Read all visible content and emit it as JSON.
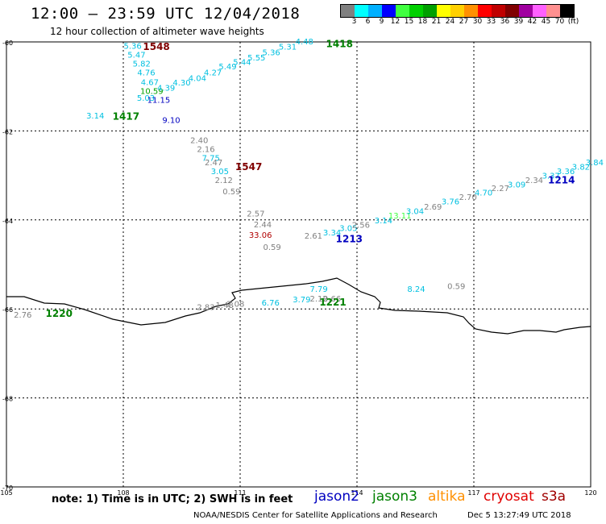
{
  "header": {
    "title": "12:00 – 23:59 UTC 12/04/2018",
    "subtitle": "12 hour collection of altimeter wave heights"
  },
  "legend": {
    "colors": [
      "#808080",
      "#00ffff",
      "#00b0ff",
      "#0000ff",
      "#40ff40",
      "#00d000",
      "#00a000",
      "#ffff00",
      "#ffd000",
      "#ff9000",
      "#ff0000",
      "#c00000",
      "#800000",
      "#a000a0",
      "#ff60ff",
      "#ff9090",
      "#000000"
    ],
    "labels": [
      "3",
      "6",
      "9",
      "12",
      "15",
      "18",
      "21",
      "24",
      "27",
      "30",
      "33",
      "36",
      "39",
      "42",
      "45",
      "70",
      "(ft)"
    ]
  },
  "map": {
    "lat_ticks": [
      "-60",
      "-62",
      "-64",
      "-66",
      "-68",
      "-70"
    ],
    "lon_ticks": [
      "105",
      "108",
      "111",
      "114",
      "117",
      "120"
    ],
    "ticks": [
      {
        "text": "5.36",
        "lon": 108.24,
        "lat": -60.15,
        "color": "#00c0e0"
      },
      {
        "text": "5.47",
        "lon": 108.34,
        "lat": -60.35,
        "color": "#00c0e0"
      },
      {
        "text": "5.82",
        "lon": 108.47,
        "lat": -60.55,
        "color": "#00c0e0"
      },
      {
        "text": "4.76",
        "lon": 108.59,
        "lat": -60.75,
        "color": "#00c0e0"
      },
      {
        "text": "4.67",
        "lon": 108.68,
        "lat": -60.97,
        "color": "#00c0e0"
      },
      {
        "text": "10.59",
        "lon": 108.73,
        "lat": -61.17,
        "color": "#00a000"
      },
      {
        "text": "5.03",
        "lon": 108.58,
        "lat": -61.32,
        "color": "#00c0e0"
      },
      {
        "text": "11.15",
        "lon": 108.91,
        "lat": -61.37,
        "color": "#0000c0"
      },
      {
        "text": "3.14",
        "lon": 107.28,
        "lat": -61.72,
        "color": "#00c0e0"
      },
      {
        "text": "9.10",
        "lon": 109.23,
        "lat": -61.82,
        "color": "#0000c0"
      },
      {
        "text": "4.39",
        "lon": 109.1,
        "lat": -61.1,
        "color": "#00c0e0"
      },
      {
        "text": "4.30",
        "lon": 109.5,
        "lat": -60.98,
        "color": "#00c0e0"
      },
      {
        "text": "4.04",
        "lon": 109.9,
        "lat": -60.88,
        "color": "#00c0e0"
      },
      {
        "text": "4.27",
        "lon": 110.3,
        "lat": -60.75,
        "color": "#00c0e0"
      },
      {
        "text": "5.49",
        "lon": 110.68,
        "lat": -60.62,
        "color": "#00c0e0"
      },
      {
        "text": "5.44",
        "lon": 111.05,
        "lat": -60.52,
        "color": "#00c0e0"
      },
      {
        "text": "5.55",
        "lon": 111.42,
        "lat": -60.42,
        "color": "#00c0e0"
      },
      {
        "text": "5.36",
        "lon": 111.8,
        "lat": -60.3,
        "color": "#00c0e0"
      },
      {
        "text": "5.31",
        "lon": 112.22,
        "lat": -60.17,
        "color": "#00c0e0"
      },
      {
        "text": "4.48",
        "lon": 112.65,
        "lat": -60.05,
        "color": "#00c0e0"
      },
      {
        "text": "2.40",
        "lon": 109.95,
        "lat": -62.27,
        "color": "#808080"
      },
      {
        "text": "2.16",
        "lon": 110.12,
        "lat": -62.47,
        "color": "#808080"
      },
      {
        "text": "7.75",
        "lon": 110.25,
        "lat": -62.67,
        "color": "#00c0e0"
      },
      {
        "text": "2.47",
        "lon": 110.32,
        "lat": -62.77,
        "color": "#808080"
      },
      {
        "text": "3.05",
        "lon": 110.48,
        "lat": -62.97,
        "color": "#00c0e0"
      },
      {
        "text": "2.12",
        "lon": 110.58,
        "lat": -63.17,
        "color": "#808080"
      },
      {
        "text": "0.59",
        "lon": 110.78,
        "lat": -63.42,
        "color": "#808080"
      },
      {
        "text": "2.57",
        "lon": 111.4,
        "lat": -63.92,
        "color": "#808080"
      },
      {
        "text": "2.44",
        "lon": 111.58,
        "lat": -64.17,
        "color": "#808080"
      },
      {
        "text": "33.06",
        "lon": 111.52,
        "lat": -64.4,
        "color": "#b00000"
      },
      {
        "text": "0.59",
        "lon": 111.82,
        "lat": -64.67,
        "color": "#808080"
      },
      {
        "text": "2.61",
        "lon": 112.88,
        "lat": -64.42,
        "color": "#808080"
      },
      {
        "text": "3.34",
        "lon": 113.36,
        "lat": -64.35,
        "color": "#00c0e0"
      },
      {
        "text": "3.05",
        "lon": 113.78,
        "lat": -64.25,
        "color": "#00c0e0"
      },
      {
        "text": "2.56",
        "lon": 114.1,
        "lat": -64.18,
        "color": "#808080"
      },
      {
        "text": "3.14",
        "lon": 114.68,
        "lat": -64.08,
        "color": "#00c0e0"
      },
      {
        "text": "13.11",
        "lon": 115.1,
        "lat": -63.97,
        "color": "#40ff40"
      },
      {
        "text": "3.04",
        "lon": 115.49,
        "lat": -63.87,
        "color": "#00c0e0"
      },
      {
        "text": "2.69",
        "lon": 115.95,
        "lat": -63.77,
        "color": "#808080"
      },
      {
        "text": "3.76",
        "lon": 116.4,
        "lat": -63.65,
        "color": "#00c0e0"
      },
      {
        "text": "2.70",
        "lon": 116.85,
        "lat": -63.55,
        "color": "#808080"
      },
      {
        "text": "4.70",
        "lon": 117.25,
        "lat": -63.45,
        "color": "#00c0e0"
      },
      {
        "text": "2.27",
        "lon": 117.68,
        "lat": -63.35,
        "color": "#808080"
      },
      {
        "text": "3.09",
        "lon": 118.1,
        "lat": -63.27,
        "color": "#00c0e0"
      },
      {
        "text": "2.34",
        "lon": 118.55,
        "lat": -63.17,
        "color": "#808080"
      },
      {
        "text": "3.37",
        "lon": 118.98,
        "lat": -63.07,
        "color": "#00c0e0"
      },
      {
        "text": "3.36",
        "lon": 119.36,
        "lat": -62.97,
        "color": "#00c0e0"
      },
      {
        "text": "3.82",
        "lon": 119.75,
        "lat": -62.87,
        "color": "#00c0e0"
      },
      {
        "text": "3.84",
        "lon": 120.1,
        "lat": -62.77,
        "color": "#00c0e0"
      },
      {
        "text": "8.24",
        "lon": 115.52,
        "lat": -65.62,
        "color": "#00c0e0"
      },
      {
        "text": "0.59",
        "lon": 116.55,
        "lat": -65.55,
        "color": "#808080"
      },
      {
        "text": "2.76",
        "lon": 105.42,
        "lat": -66.2,
        "color": "#808080"
      },
      {
        "text": "2.83",
        "lon": 110.12,
        "lat": -66.02,
        "color": "#808080"
      },
      {
        "text": "1.48",
        "lon": 110.6,
        "lat": -65.98,
        "color": "#808080"
      },
      {
        "text": "2.08",
        "lon": 110.88,
        "lat": -65.95,
        "color": "#808080"
      },
      {
        "text": "6.76",
        "lon": 111.78,
        "lat": -65.92,
        "color": "#00c0e0"
      },
      {
        "text": "3.79",
        "lon": 112.58,
        "lat": -65.85,
        "color": "#00c0e0"
      },
      {
        "text": "7.79",
        "lon": 113.02,
        "lat": -65.62,
        "color": "#00c0e0"
      },
      {
        "text": "2.12",
        "lon": 113.02,
        "lat": -65.83,
        "color": "#808080"
      },
      {
        "text": "9.66",
        "lon": 113.36,
        "lat": -65.83,
        "color": "#808080"
      }
    ],
    "passes": [
      {
        "text": "1548",
        "lon": 108.85,
        "lat": -60.18,
        "color": "#800000"
      },
      {
        "text": "1418",
        "lon": 113.55,
        "lat": -60.12,
        "color": "#008000"
      },
      {
        "text": "1417",
        "lon": 108.07,
        "lat": -61.75,
        "color": "#008000"
      },
      {
        "text": "1547",
        "lon": 111.22,
        "lat": -62.88,
        "color": "#800000"
      },
      {
        "text": "1213",
        "lon": 113.8,
        "lat": -64.5,
        "color": "#0000c0"
      },
      {
        "text": "1214",
        "lon": 119.25,
        "lat": -63.18,
        "color": "#0000c0"
      },
      {
        "text": "1221",
        "lon": 113.38,
        "lat": -65.92,
        "color": "#008000"
      },
      {
        "text": "1220",
        "lon": 106.35,
        "lat": -66.18,
        "color": "#008000"
      }
    ]
  },
  "notes": {
    "units_note": "note:  1) Time is in UTC;  2) SWH is in feet",
    "satellites": [
      {
        "name": "jason2",
        "color": "#0000c0"
      },
      {
        "name": "jason3",
        "color": "#008000"
      },
      {
        "name": "altika",
        "color": "#ff9000"
      },
      {
        "name": "cryosat",
        "color": "#e00000"
      },
      {
        "name": "s3a",
        "color": "#a00000"
      }
    ],
    "footer_left": "NOAA/NESDIS Center for Satellite Applications and Research",
    "footer_right": "Dec  5 13:27:49 UTC 2018"
  }
}
